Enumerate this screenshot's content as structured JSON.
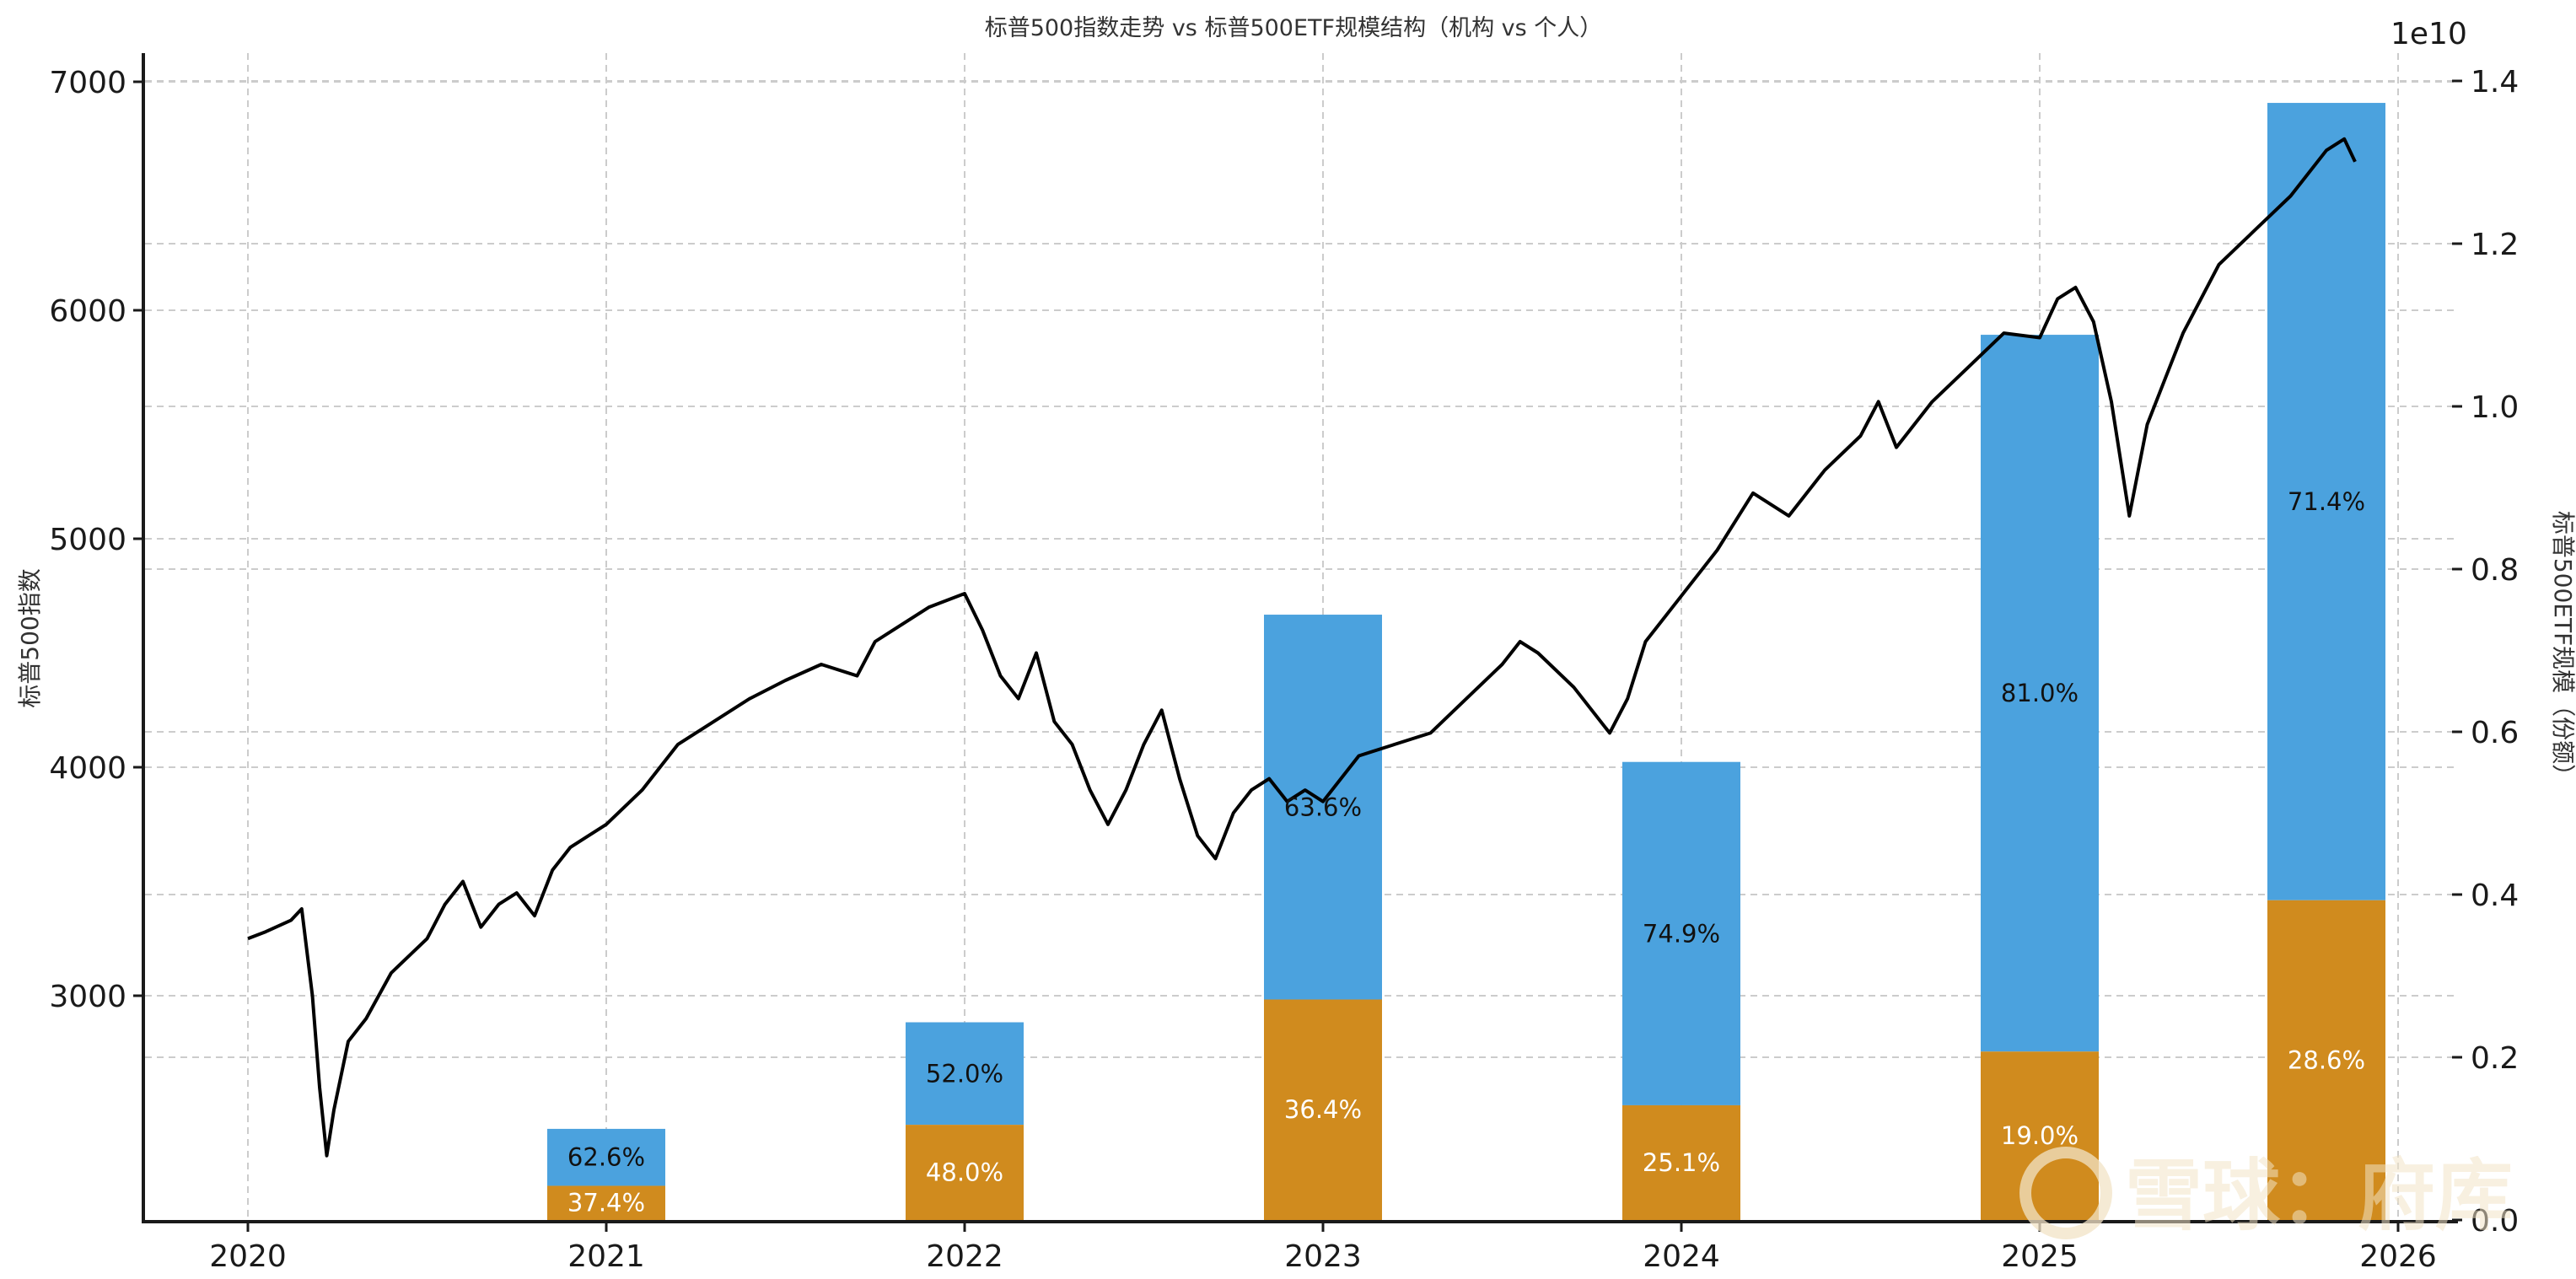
{
  "chart_data": {
    "type": "bar+line",
    "title": "标普500指数走势 vs 标普500ETF规模结构（机构 vs 个人）",
    "xlabel": "",
    "ylabel_left": "标普500指数",
    "ylabel_right": "标普500ETF规模（份额）",
    "right_axis_offset_text": "1e10",
    "x_ticks": [
      "2020",
      "2021",
      "2022",
      "2023",
      "2024",
      "2025",
      "2026"
    ],
    "y_left_ticks": [
      "3000",
      "4000",
      "5000",
      "6000",
      "7000"
    ],
    "y_right_ticks": [
      "0.0",
      "0.2",
      "0.4",
      "0.6",
      "0.8",
      "1.0",
      "1.2",
      "1.4"
    ],
    "ylim_left": [
      2020,
      7130
    ],
    "ylim_right": [
      0,
      1.43
    ],
    "grid": true,
    "colors": {
      "institution": "#4ba2de",
      "individual": "#d08b1e",
      "line": "#000000"
    },
    "bars": [
      {
        "x": 2021.0,
        "total_1e10": 0.112,
        "individual_1e10": 0.042,
        "institution_pct": "62.6%",
        "individual_pct": "37.4%"
      },
      {
        "x": 2022.0,
        "total_1e10": 0.243,
        "individual_1e10": 0.117,
        "institution_pct": "52.0%",
        "individual_pct": "48.0%"
      },
      {
        "x": 2023.0,
        "total_1e10": 0.744,
        "individual_1e10": 0.271,
        "institution_pct": "63.6%",
        "individual_pct": "36.4%"
      },
      {
        "x": 2024.0,
        "total_1e10": 0.563,
        "individual_1e10": 0.141,
        "institution_pct": "74.9%",
        "individual_pct": "25.1%"
      },
      {
        "x": 2025.0,
        "total_1e10": 1.088,
        "individual_1e10": 0.207,
        "institution_pct": "81.0%",
        "individual_pct": "19.0%"
      },
      {
        "x": 2025.8,
        "total_1e10": 1.373,
        "individual_1e10": 0.393,
        "institution_pct": "71.4%",
        "individual_pct": "28.6%"
      }
    ],
    "series": [
      {
        "name": "标普500指数",
        "type": "line",
        "x": [
          2020.0,
          2020.05,
          2020.12,
          2020.15,
          2020.18,
          2020.2,
          2020.22,
          2020.24,
          2020.28,
          2020.33,
          2020.4,
          2020.5,
          2020.55,
          2020.6,
          2020.65,
          2020.7,
          2020.75,
          2020.8,
          2020.85,
          2020.9,
          2020.95,
          2021.0,
          2021.1,
          2021.2,
          2021.3,
          2021.4,
          2021.5,
          2021.6,
          2021.7,
          2021.75,
          2021.8,
          2021.9,
          2022.0,
          2022.05,
          2022.1,
          2022.15,
          2022.2,
          2022.25,
          2022.3,
          2022.35,
          2022.4,
          2022.45,
          2022.5,
          2022.55,
          2022.6,
          2022.65,
          2022.7,
          2022.75,
          2022.8,
          2022.85,
          2022.9,
          2022.95,
          2023.0,
          2023.1,
          2023.2,
          2023.3,
          2023.4,
          2023.5,
          2023.55,
          2023.6,
          2023.7,
          2023.8,
          2023.85,
          2023.9,
          2024.0,
          2024.1,
          2024.2,
          2024.3,
          2024.4,
          2024.5,
          2024.55,
          2024.6,
          2024.7,
          2024.8,
          2024.9,
          2025.0,
          2025.05,
          2025.1,
          2025.15,
          2025.2,
          2025.25,
          2025.3,
          2025.35,
          2025.4,
          2025.5,
          2025.6,
          2025.7,
          2025.8,
          2025.85,
          2025.88
        ],
        "y": [
          3250,
          3280,
          3330,
          3380,
          3000,
          2600,
          2300,
          2500,
          2800,
          2900,
          3100,
          3250,
          3400,
          3500,
          3300,
          3400,
          3450,
          3350,
          3550,
          3650,
          3700,
          3750,
          3900,
          4100,
          4200,
          4300,
          4380,
          4450,
          4400,
          4550,
          4600,
          4700,
          4760,
          4600,
          4400,
          4300,
          4500,
          4200,
          4100,
          3900,
          3750,
          3900,
          4100,
          4250,
          3950,
          3700,
          3600,
          3800,
          3900,
          3950,
          3850,
          3900,
          3850,
          4050,
          4100,
          4150,
          4300,
          4450,
          4550,
          4500,
          4350,
          4150,
          4300,
          4550,
          4750,
          4950,
          5200,
          5100,
          5300,
          5450,
          5600,
          5400,
          5600,
          5750,
          5900,
          5880,
          6050,
          6100,
          5950,
          5600,
          5100,
          5500,
          5700,
          5900,
          6200,
          6350,
          6500,
          6700,
          6750,
          6650
        ]
      }
    ]
  },
  "watermark": {
    "text": "雪球：府库"
  }
}
